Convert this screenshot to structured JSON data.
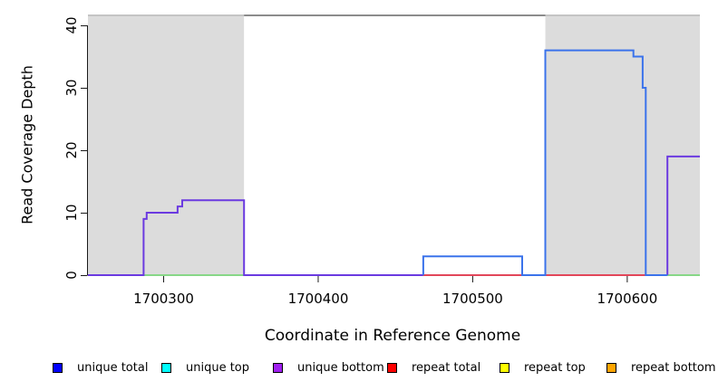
{
  "chart_data": {
    "type": "line",
    "subtype": "step-coverage",
    "title": "",
    "xlabel": "Coordinate in Reference Genome",
    "ylabel": "Read Coverage Depth",
    "xlim": [
      1700251,
      1700647
    ],
    "ylim": [
      0,
      41.9
    ],
    "xticks": [
      1700300,
      1700400,
      1700500,
      1700600
    ],
    "yticks": [
      0,
      10,
      20,
      30,
      40
    ],
    "grid": false,
    "legend_position": "bottom",
    "shaded_regions": [
      {
        "x0": 1700251,
        "x1": 1700352,
        "top": 41.6,
        "color": "#dcdcdc"
      },
      {
        "x0": 1700547,
        "x1": 1700647,
        "top": 41.6,
        "color": "#dcdcdc"
      }
    ],
    "top_line": {
      "y": 41.6,
      "x0": 1700352,
      "x1": 1700547,
      "color": "#8c8c8c"
    },
    "series": [
      {
        "name": "x-axis-baseline",
        "color": "#1a1a1a",
        "width": 1,
        "paths": [
          [
            [
              1700251,
              0
            ],
            [
              1700647,
              0
            ]
          ]
        ]
      },
      {
        "name": "unlabeled-green-baseline",
        "color": "#87d787",
        "width": 2,
        "paths": [
          [
            [
              1700287,
              0
            ],
            [
              1700352,
              0
            ]
          ],
          [
            [
              1700626,
              0
            ],
            [
              1700647,
              0
            ]
          ]
        ]
      },
      {
        "name": "unique-bottom",
        "color": "#6b3ae0",
        "width": 2,
        "paths": [
          [
            [
              1700251,
              0
            ],
            [
              1700287,
              0
            ],
            [
              1700287,
              9
            ],
            [
              1700289,
              9
            ],
            [
              1700289,
              10
            ],
            [
              1700309,
              10
            ],
            [
              1700309,
              11
            ],
            [
              1700312,
              11
            ],
            [
              1700312,
              12
            ],
            [
              1700352,
              12
            ],
            [
              1700352,
              0
            ],
            [
              1700468,
              0
            ]
          ],
          [
            [
              1700626,
              0
            ],
            [
              1700626,
              19
            ],
            [
              1700647,
              19
            ]
          ]
        ]
      },
      {
        "name": "repeat-total",
        "color": "#e2465a",
        "width": 2,
        "paths": [
          [
            [
              1700468,
              0
            ],
            [
              1700612,
              0
            ]
          ]
        ]
      },
      {
        "name": "unique-total",
        "color": "#3b73eb",
        "width": 2,
        "paths": [
          [
            [
              1700468,
              0
            ],
            [
              1700468,
              3
            ],
            [
              1700532,
              3
            ],
            [
              1700532,
              0
            ],
            [
              1700547,
              0
            ],
            [
              1700547,
              36
            ],
            [
              1700604,
              36
            ],
            [
              1700604,
              35
            ],
            [
              1700610,
              35
            ],
            [
              1700610,
              30
            ],
            [
              1700612,
              30
            ],
            [
              1700612,
              0
            ],
            [
              1700626,
              0
            ]
          ]
        ]
      }
    ],
    "legend": [
      {
        "label": "unique total",
        "color": "#0000ff"
      },
      {
        "label": "unique top",
        "color": "#00ffff"
      },
      {
        "label": "unique bottom",
        "color": "#a020f0"
      },
      {
        "label": "repeat total",
        "color": "#ff0000"
      },
      {
        "label": "repeat top",
        "color": "#ffff00"
      },
      {
        "label": "repeat bottom",
        "color": "#ffa500"
      }
    ]
  }
}
